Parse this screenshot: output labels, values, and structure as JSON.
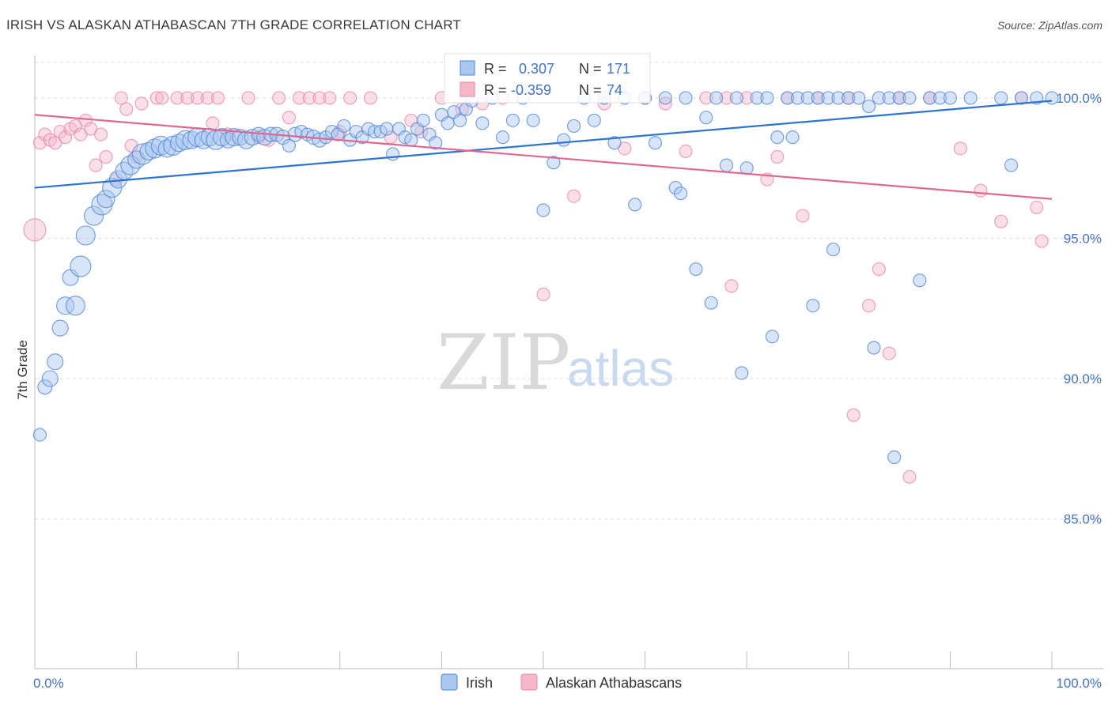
{
  "title": "IRISH VS ALASKAN ATHABASCAN 7TH GRADE CORRELATION CHART",
  "source": "Source: ZipAtlas.com",
  "watermark": {
    "zip": "ZIP",
    "atlas": "atlas"
  },
  "colors": {
    "blue_fill": "#a9c6ef",
    "blue_stroke": "#4f86d6",
    "blue_line": "#2f74d0",
    "pink_fill": "#f5b8cb",
    "pink_stroke": "#e887a6",
    "pink_line": "#e06890",
    "grid": "#dddddd",
    "axis_text": "#4472c4"
  },
  "legend_stats": [
    {
      "r_label": "R =",
      "r_value": "0.307",
      "n_label": "N =",
      "n_value": "171"
    },
    {
      "r_label": "R =",
      "r_value": "-0.359",
      "n_label": "N =",
      "n_value": "74"
    }
  ],
  "legend_bottom": [
    "Irish",
    "Alaskan Athabascans"
  ],
  "chart_data": {
    "type": "scatter",
    "title": "IRISH VS ALASKAN ATHABASCAN 7TH GRADE CORRELATION CHART",
    "xlabel": "",
    "ylabel": "7th Grade",
    "x_tick_labels": [
      "0.0%",
      "100.0%"
    ],
    "y_tick_labels": [
      "100.0%",
      "95.0%",
      "90.0%",
      "85.0%"
    ],
    "xlim": [
      0,
      100
    ],
    "ylim": [
      80.4,
      101.8
    ],
    "y_ticks": [
      100,
      95,
      90,
      85
    ],
    "grid": true,
    "legend_position": "bottom",
    "series": [
      {
        "name": "Irish",
        "trend": {
          "x": [
            0,
            100
          ],
          "y": [
            96.8,
            99.9
          ]
        },
        "points": [
          [
            0.5,
            88.0,
            8
          ],
          [
            1.0,
            89.7,
            9
          ],
          [
            1.5,
            90.0,
            10
          ],
          [
            2.0,
            90.6,
            10
          ],
          [
            2.5,
            91.8,
            10
          ],
          [
            3.0,
            92.6,
            11
          ],
          [
            3.5,
            93.6,
            10
          ],
          [
            4.0,
            92.6,
            12
          ],
          [
            4.5,
            94.0,
            13
          ],
          [
            5.0,
            95.1,
            12
          ],
          [
            5.8,
            95.8,
            12
          ],
          [
            6.6,
            96.2,
            13
          ],
          [
            7.0,
            96.4,
            11
          ],
          [
            7.6,
            96.8,
            12
          ],
          [
            8.2,
            97.1,
            11
          ],
          [
            8.8,
            97.4,
            11
          ],
          [
            9.4,
            97.6,
            12
          ],
          [
            10.0,
            97.8,
            11
          ],
          [
            10.6,
            98.0,
            13
          ],
          [
            11.2,
            98.1,
            11
          ],
          [
            11.8,
            98.2,
            12
          ],
          [
            12.4,
            98.3,
            12
          ],
          [
            13.0,
            98.2,
            11
          ],
          [
            13.6,
            98.3,
            12
          ],
          [
            14.2,
            98.4,
            11
          ],
          [
            14.8,
            98.5,
            12
          ],
          [
            15.4,
            98.5,
            11
          ],
          [
            16.0,
            98.6,
            12
          ],
          [
            16.6,
            98.5,
            11
          ],
          [
            17.2,
            98.6,
            11
          ],
          [
            17.8,
            98.5,
            12
          ],
          [
            18.4,
            98.6,
            11
          ],
          [
            19.0,
            98.5,
            10
          ],
          [
            19.6,
            98.6,
            11
          ],
          [
            20.2,
            98.6,
            10
          ],
          [
            20.8,
            98.5,
            11
          ],
          [
            21.4,
            98.6,
            10
          ],
          [
            22.0,
            98.7,
            9
          ],
          [
            22.6,
            98.6,
            10
          ],
          [
            23.2,
            98.7,
            9
          ],
          [
            23.8,
            98.7,
            9
          ],
          [
            24.4,
            98.6,
            9
          ],
          [
            25.0,
            98.3,
            8
          ],
          [
            25.6,
            98.7,
            9
          ],
          [
            26.2,
            98.8,
            8
          ],
          [
            26.8,
            98.7,
            8
          ],
          [
            27.4,
            98.6,
            9
          ],
          [
            28.0,
            98.5,
            9
          ],
          [
            28.6,
            98.6,
            8
          ],
          [
            29.2,
            98.8,
            8
          ],
          [
            29.8,
            98.7,
            8
          ],
          [
            30.4,
            99.0,
            8
          ],
          [
            31.0,
            98.5,
            8
          ],
          [
            31.6,
            98.8,
            8
          ],
          [
            32.2,
            98.6,
            8
          ],
          [
            32.8,
            98.9,
            8
          ],
          [
            33.4,
            98.8,
            8
          ],
          [
            34.0,
            98.8,
            8
          ],
          [
            34.6,
            98.9,
            8
          ],
          [
            35.2,
            98.0,
            8
          ],
          [
            35.8,
            98.9,
            8
          ],
          [
            36.4,
            98.6,
            8
          ],
          [
            37.0,
            98.5,
            8
          ],
          [
            37.6,
            98.9,
            8
          ],
          [
            38.2,
            99.2,
            8
          ],
          [
            38.8,
            98.7,
            8
          ],
          [
            39.4,
            98.4,
            8
          ],
          [
            40.0,
            99.4,
            8
          ],
          [
            40.6,
            99.1,
            8
          ],
          [
            41.2,
            99.5,
            8
          ],
          [
            41.8,
            99.2,
            8
          ],
          [
            42.4,
            99.6,
            8
          ],
          [
            43.0,
            99.9,
            8
          ],
          [
            44.0,
            99.1,
            8
          ],
          [
            45.0,
            100.0,
            8
          ],
          [
            46.0,
            98.6,
            8
          ],
          [
            47.0,
            99.2,
            8
          ],
          [
            48.0,
            100.0,
            8
          ],
          [
            49.0,
            99.2,
            8
          ],
          [
            50.0,
            96.0,
            8
          ],
          [
            51.0,
            97.7,
            8
          ],
          [
            52.0,
            98.5,
            8
          ],
          [
            53.0,
            99.0,
            8
          ],
          [
            54.0,
            100.0,
            8
          ],
          [
            55.0,
            99.2,
            8
          ],
          [
            56.0,
            100.0,
            8
          ],
          [
            57.0,
            98.4,
            8
          ],
          [
            58.0,
            100.0,
            8
          ],
          [
            59.0,
            96.2,
            8
          ],
          [
            60.0,
            100.0,
            8
          ],
          [
            61.0,
            98.4,
            8
          ],
          [
            62.0,
            100.0,
            8
          ],
          [
            63.0,
            96.8,
            8
          ],
          [
            63.5,
            96.6,
            8
          ],
          [
            64.0,
            100.0,
            8
          ],
          [
            65.0,
            93.9,
            8
          ],
          [
            66.0,
            99.3,
            8
          ],
          [
            66.5,
            92.7,
            8
          ],
          [
            67.0,
            100.0,
            8
          ],
          [
            68.0,
            97.6,
            8
          ],
          [
            69.0,
            100.0,
            8
          ],
          [
            69.5,
            90.2,
            8
          ],
          [
            70.0,
            97.5,
            8
          ],
          [
            71.0,
            100.0,
            8
          ],
          [
            72.0,
            100.0,
            8
          ],
          [
            72.5,
            91.5,
            8
          ],
          [
            73.0,
            98.6,
            8
          ],
          [
            74.0,
            100.0,
            8
          ],
          [
            74.5,
            98.6,
            8
          ],
          [
            75.0,
            100.0,
            8
          ],
          [
            76.0,
            100.0,
            8
          ],
          [
            76.5,
            92.6,
            8
          ],
          [
            77.0,
            100.0,
            8
          ],
          [
            78.0,
            100.0,
            8
          ],
          [
            78.5,
            94.6,
            8
          ],
          [
            79.0,
            100.0,
            8
          ],
          [
            80.0,
            100.0,
            8
          ],
          [
            81.0,
            100.0,
            8
          ],
          [
            82.0,
            99.7,
            8
          ],
          [
            82.5,
            91.1,
            8
          ],
          [
            83.0,
            100.0,
            8
          ],
          [
            84.0,
            100.0,
            8
          ],
          [
            84.5,
            87.2,
            8
          ],
          [
            85.0,
            100.0,
            8
          ],
          [
            86.0,
            100.0,
            8
          ],
          [
            87.0,
            93.5,
            8
          ],
          [
            88.0,
            100.0,
            8
          ],
          [
            89.0,
            100.0,
            8
          ],
          [
            90.0,
            100.0,
            8
          ],
          [
            92.0,
            100.0,
            8
          ],
          [
            95.0,
            100.0,
            8
          ],
          [
            96.0,
            97.6,
            8
          ],
          [
            97.0,
            100.0,
            8
          ],
          [
            98.5,
            100.0,
            8
          ],
          [
            100.0,
            100.0,
            8
          ]
        ]
      },
      {
        "name": "Alaskan Athabascans",
        "trend": {
          "x": [
            0,
            100
          ],
          "y": [
            99.4,
            96.4
          ]
        },
        "points": [
          [
            0.0,
            95.3,
            14
          ],
          [
            0.5,
            98.4,
            8
          ],
          [
            1.0,
            98.7,
            8
          ],
          [
            1.5,
            98.5,
            8
          ],
          [
            2.0,
            98.4,
            8
          ],
          [
            2.5,
            98.8,
            8
          ],
          [
            3.0,
            98.6,
            8
          ],
          [
            3.5,
            98.9,
            8
          ],
          [
            4.0,
            99.0,
            8
          ],
          [
            4.5,
            98.7,
            8
          ],
          [
            5.0,
            99.2,
            8
          ],
          [
            5.5,
            98.9,
            8
          ],
          [
            6.0,
            97.6,
            8
          ],
          [
            6.5,
            98.7,
            8
          ],
          [
            7.0,
            97.9,
            8
          ],
          [
            8.0,
            97.1,
            8
          ],
          [
            8.5,
            100.0,
            8
          ],
          [
            9.0,
            99.6,
            8
          ],
          [
            9.5,
            98.3,
            8
          ],
          [
            10.0,
            97.9,
            8
          ],
          [
            10.5,
            99.8,
            8
          ],
          [
            12.0,
            100.0,
            8
          ],
          [
            12.5,
            100.0,
            8
          ],
          [
            14.0,
            100.0,
            8
          ],
          [
            15.0,
            100.0,
            8
          ],
          [
            16.0,
            100.0,
            8
          ],
          [
            17.0,
            100.0,
            8
          ],
          [
            17.5,
            99.1,
            8
          ],
          [
            18.0,
            100.0,
            8
          ],
          [
            19.0,
            98.7,
            8
          ],
          [
            21.0,
            100.0,
            8
          ],
          [
            22.0,
            98.6,
            8
          ],
          [
            23.0,
            98.5,
            8
          ],
          [
            24.0,
            100.0,
            8
          ],
          [
            25.0,
            99.3,
            8
          ],
          [
            26.0,
            100.0,
            8
          ],
          [
            27.0,
            100.0,
            8
          ],
          [
            28.0,
            100.0,
            8
          ],
          [
            29.0,
            100.0,
            8
          ],
          [
            30.0,
            98.8,
            8
          ],
          [
            31.0,
            100.0,
            8
          ],
          [
            33.0,
            100.0,
            8
          ],
          [
            35.0,
            98.6,
            8
          ],
          [
            37.0,
            99.2,
            8
          ],
          [
            38.0,
            98.8,
            8
          ],
          [
            40.0,
            100.0,
            8
          ],
          [
            42.0,
            99.6,
            8
          ],
          [
            44.0,
            99.8,
            8
          ],
          [
            46.0,
            100.0,
            8
          ],
          [
            50.0,
            93.0,
            8
          ],
          [
            53.0,
            96.5,
            8
          ],
          [
            56.0,
            99.8,
            8
          ],
          [
            58.0,
            98.2,
            8
          ],
          [
            60.0,
            100.0,
            8
          ],
          [
            62.0,
            99.8,
            8
          ],
          [
            64.0,
            98.1,
            8
          ],
          [
            66.0,
            100.0,
            8
          ],
          [
            68.0,
            100.0,
            8
          ],
          [
            68.5,
            93.3,
            8
          ],
          [
            70.0,
            100.0,
            8
          ],
          [
            72.0,
            97.1,
            8
          ],
          [
            73.0,
            97.9,
            8
          ],
          [
            74.0,
            100.0,
            8
          ],
          [
            75.5,
            95.8,
            8
          ],
          [
            77.0,
            100.0,
            8
          ],
          [
            80.0,
            100.0,
            8
          ],
          [
            80.5,
            88.7,
            8
          ],
          [
            82.0,
            92.6,
            8
          ],
          [
            83.0,
            93.9,
            8
          ],
          [
            84.0,
            90.9,
            8
          ],
          [
            85.0,
            100.0,
            8
          ],
          [
            86.0,
            86.5,
            8
          ],
          [
            88.0,
            100.0,
            8
          ],
          [
            91.0,
            98.2,
            8
          ],
          [
            93.0,
            96.7,
            8
          ],
          [
            95.0,
            95.6,
            8
          ],
          [
            97.0,
            100.0,
            8
          ],
          [
            98.5,
            96.1,
            8
          ],
          [
            99.0,
            94.9,
            8
          ]
        ]
      }
    ]
  }
}
